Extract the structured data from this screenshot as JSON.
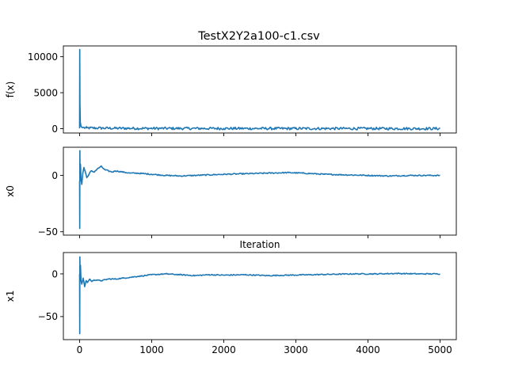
{
  "chart_data": {
    "type": "line",
    "title": "TestX2Y2a100-c1.csv",
    "color": "#1f77b4",
    "xlim": [
      -225,
      5225
    ],
    "x_ticks": [
      0,
      1000,
      2000,
      3000,
      4000,
      5000
    ],
    "x_tick_labels": [
      "0",
      "1000",
      "2000",
      "3000",
      "4000",
      "5000"
    ],
    "subplots": [
      {
        "ylabel": "f(x)",
        "ylim": [
          -600,
          11500
        ],
        "y_ticks": [
          0,
          5000,
          10000
        ],
        "y_tick_labels": [
          "0",
          "5000",
          "10000"
        ],
        "noise": 180,
        "points": [
          [
            0,
            50
          ],
          [
            2,
            11000
          ],
          [
            5,
            3500
          ],
          [
            10,
            900
          ],
          [
            20,
            300
          ],
          [
            40,
            150
          ],
          [
            100,
            100
          ],
          [
            300,
            80
          ],
          [
            500,
            60
          ],
          [
            1000,
            40
          ],
          [
            2000,
            30
          ],
          [
            3000,
            20
          ],
          [
            4000,
            20
          ],
          [
            5000,
            10
          ]
        ]
      },
      {
        "ylabel": "x0",
        "xlabel": "Iteration",
        "ylim": [
          -53,
          25
        ],
        "y_ticks": [
          -50,
          0
        ],
        "y_tick_labels": [
          "−50",
          "0"
        ],
        "noise": 0.5,
        "points": [
          [
            0,
            -5
          ],
          [
            2,
            -47
          ],
          [
            4,
            22
          ],
          [
            7,
            -5
          ],
          [
            12,
            10
          ],
          [
            20,
            -3
          ],
          [
            30,
            -8
          ],
          [
            45,
            2
          ],
          [
            60,
            7
          ],
          [
            80,
            3
          ],
          [
            100,
            -2
          ],
          [
            130,
            1
          ],
          [
            160,
            4
          ],
          [
            200,
            3
          ],
          [
            250,
            6
          ],
          [
            300,
            8
          ],
          [
            350,
            5
          ],
          [
            400,
            4
          ],
          [
            450,
            3
          ],
          [
            500,
            4
          ],
          [
            600,
            3
          ],
          [
            700,
            2
          ],
          [
            800,
            2
          ],
          [
            1000,
            1
          ],
          [
            1200,
            0
          ],
          [
            1400,
            -0.5
          ],
          [
            1600,
            0
          ],
          [
            1800,
            0.5
          ],
          [
            2000,
            1
          ],
          [
            2300,
            1.5
          ],
          [
            2600,
            2
          ],
          [
            2900,
            2.5
          ],
          [
            3100,
            2
          ],
          [
            3400,
            1
          ],
          [
            3700,
            0.5
          ],
          [
            4000,
            0
          ],
          [
            4300,
            -0.5
          ],
          [
            4600,
            0
          ],
          [
            5000,
            0
          ]
        ]
      },
      {
        "ylabel": "x1",
        "ylim": [
          -77,
          25
        ],
        "y_ticks": [
          -50,
          0
        ],
        "y_tick_labels": [
          "−50",
          "0"
        ],
        "noise": 0.6,
        "points": [
          [
            0,
            0
          ],
          [
            2,
            -70
          ],
          [
            4,
            20
          ],
          [
            7,
            -5
          ],
          [
            12,
            10
          ],
          [
            20,
            -8
          ],
          [
            30,
            -12
          ],
          [
            50,
            -5
          ],
          [
            70,
            -15
          ],
          [
            90,
            -8
          ],
          [
            110,
            -10
          ],
          [
            140,
            -6
          ],
          [
            170,
            -9
          ],
          [
            200,
            -7
          ],
          [
            300,
            -8
          ],
          [
            400,
            -6
          ],
          [
            500,
            -6
          ],
          [
            600,
            -5
          ],
          [
            700,
            -4
          ],
          [
            800,
            -3
          ],
          [
            900,
            -2
          ],
          [
            1000,
            -1
          ],
          [
            1200,
            0
          ],
          [
            1400,
            -1
          ],
          [
            1600,
            -2
          ],
          [
            1800,
            -1
          ],
          [
            2000,
            -1.5
          ],
          [
            2300,
            -1
          ],
          [
            2600,
            -2
          ],
          [
            2900,
            -1.5
          ],
          [
            3200,
            -1
          ],
          [
            3500,
            -0.5
          ],
          [
            3800,
            0
          ],
          [
            4100,
            0
          ],
          [
            4400,
            0.5
          ],
          [
            4700,
            0
          ],
          [
            5000,
            0
          ]
        ]
      }
    ]
  }
}
